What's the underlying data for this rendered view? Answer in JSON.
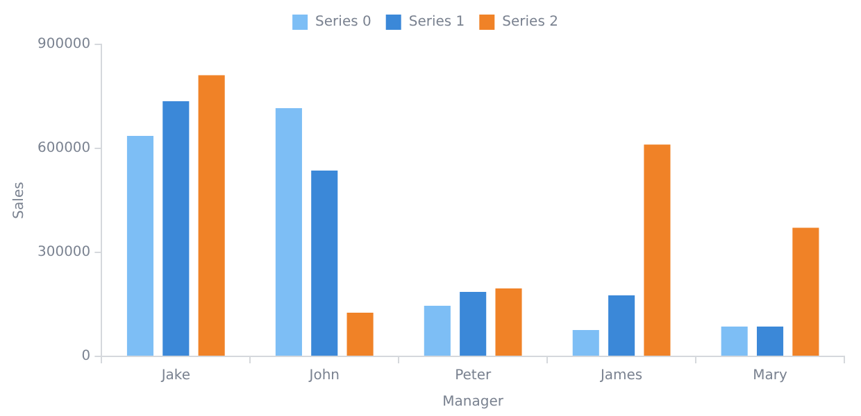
{
  "chart_data": {
    "type": "bar",
    "xlabel": "Manager",
    "ylabel": "Sales",
    "categories": [
      "Jake",
      "John",
      "Peter",
      "James",
      "Mary"
    ],
    "series": [
      {
        "name": "Series 0",
        "color": "#7dbef5",
        "values": [
          640000,
          720000,
          150000,
          80000,
          90000
        ]
      },
      {
        "name": "Series 1",
        "color": "#3b88d8",
        "values": [
          740000,
          540000,
          190000,
          180000,
          90000
        ]
      },
      {
        "name": "Series 2",
        "color": "#f08227",
        "values": [
          815000,
          130000,
          200000,
          615000,
          375000
        ]
      }
    ],
    "ylim": [
      0,
      900000
    ],
    "yticks": [
      0,
      300000,
      600000,
      900000
    ],
    "grid": false,
    "legend": "top"
  }
}
